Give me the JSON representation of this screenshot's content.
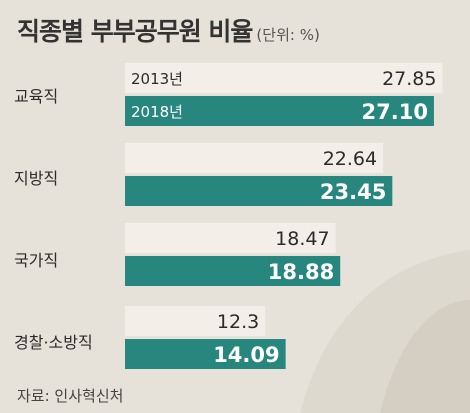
{
  "colors": {
    "bar_2013": "#f3efe8",
    "bar_2018": "#27877e",
    "background": "#e7e2d9"
  },
  "title": "직종별 부부공무원 비율",
  "unit": "(단위: %)",
  "source": "자료: 인사혁신처",
  "chart_data": {
    "type": "bar",
    "orientation": "horizontal",
    "categories": [
      "교육직",
      "지방직",
      "국가직",
      "경찰·소방직"
    ],
    "series": [
      {
        "name": "2013년",
        "values": [
          27.85,
          22.64,
          18.47,
          12.3
        ]
      },
      {
        "name": "2018년",
        "values": [
          27.1,
          23.45,
          18.88,
          14.09
        ]
      }
    ],
    "data_labels": {
      "2013년": [
        "27.85",
        "22.64",
        "18.47",
        "12.3"
      ],
      "2018년": [
        "27.10",
        "23.45",
        "18.88",
        "14.09"
      ]
    },
    "title": "직종별 부부공무원 비율",
    "xlabel": "",
    "ylabel": "",
    "grid": false,
    "legend": "inline-first-category"
  }
}
